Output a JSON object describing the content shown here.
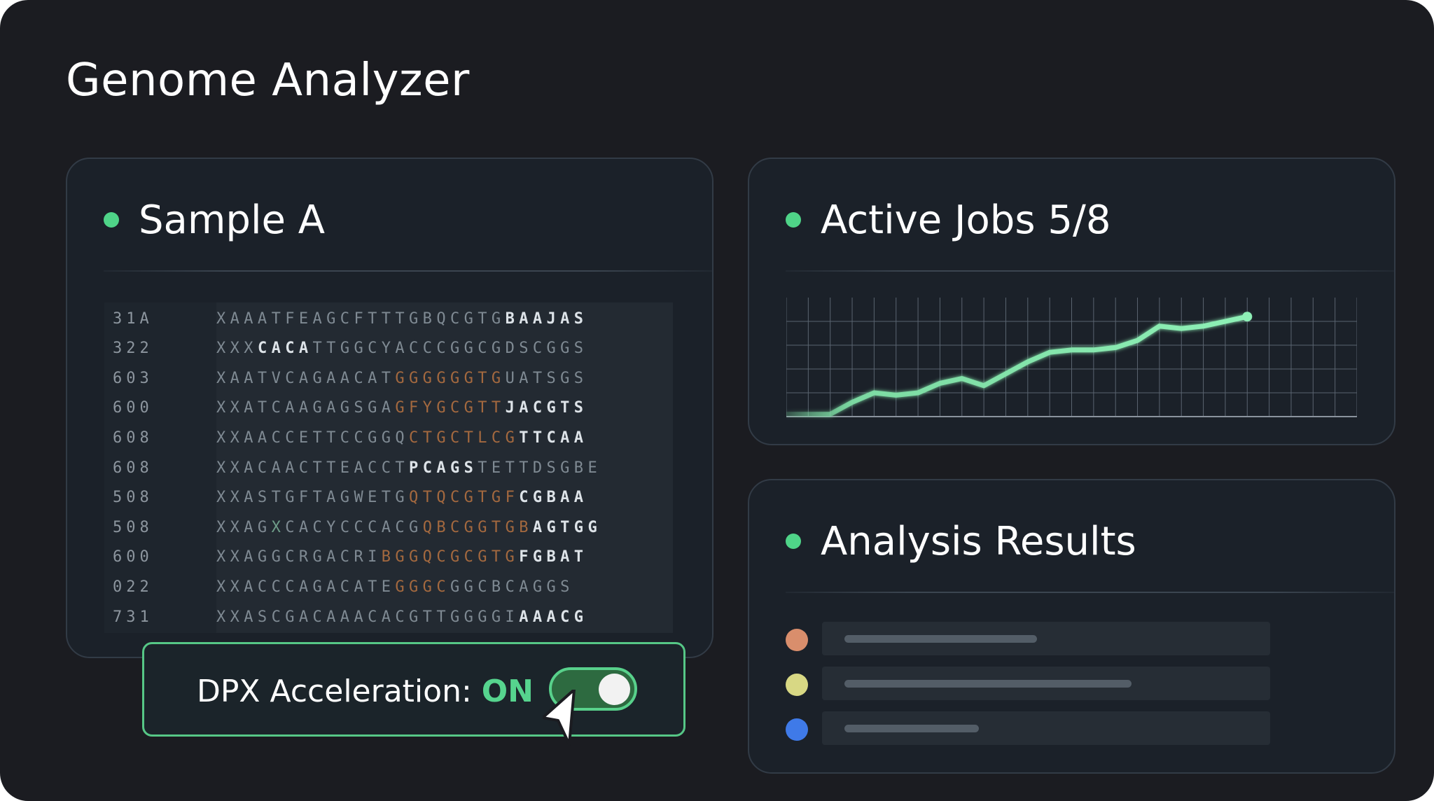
{
  "app": {
    "title": "Genome Analyzer"
  },
  "sample_panel": {
    "title": "Sample A",
    "rows": [
      {
        "num": "31A",
        "bases": [
          [
            "n",
            "XAAATF"
          ],
          [
            "n",
            "EAGCFTTTGBQCGTG"
          ],
          [
            "w",
            "BAAJAS"
          ]
        ]
      },
      {
        "num": "322",
        "bases": [
          [
            "n",
            "XXX"
          ],
          [
            "w",
            "CACA"
          ],
          [
            "n",
            "TTGGCYACCCGGCGDSCGGS"
          ]
        ]
      },
      {
        "num": "603",
        "bases": [
          [
            "n",
            "XAATVCAGAACAT"
          ],
          [
            "h",
            "GGGGGGTG"
          ],
          [
            "n",
            "UATSGS"
          ]
        ]
      },
      {
        "num": "600",
        "bases": [
          [
            "n",
            "XXATCAAGAGSGA"
          ],
          [
            "h",
            "GFYGCGTT"
          ],
          [
            "w",
            "JACGTS"
          ]
        ]
      },
      {
        "num": "608",
        "bases": [
          [
            "n",
            "XXAACCETTCCGGQ"
          ],
          [
            "h",
            "CTGCTLCG"
          ],
          [
            "w",
            "TTCAA"
          ]
        ]
      },
      {
        "num": "608",
        "bases": [
          [
            "n",
            "XXACAACTTEACCT"
          ],
          [
            "w",
            "PCAGS"
          ],
          [
            "n",
            "TETTDSGBE"
          ]
        ]
      },
      {
        "num": "508",
        "bases": [
          [
            "n",
            "XXASTGFTAGWETG"
          ],
          [
            "h",
            "QTQCGTGF"
          ],
          [
            "w",
            "CGBAA"
          ]
        ]
      },
      {
        "num": "508",
        "bases": [
          [
            "n",
            "XXAG"
          ],
          [
            "g",
            "X"
          ],
          [
            "n",
            "CACYCCCACG"
          ],
          [
            "h",
            "QBCGGTGB"
          ],
          [
            "w",
            "AGTGG"
          ]
        ]
      },
      {
        "num": "600",
        "bases": [
          [
            "n",
            "XXAGGCRGACRI"
          ],
          [
            "h",
            "BGGQCGCGTG"
          ],
          [
            "w",
            "FGBAT"
          ]
        ]
      },
      {
        "num": "022",
        "bases": [
          [
            "n",
            "XXACCCAGACATE"
          ],
          [
            "h",
            "GGGC"
          ],
          [
            "n",
            "GGCBCAGGS"
          ]
        ]
      },
      {
        "num": "731",
        "bases": [
          [
            "n",
            "XXASCGACAAACACGTTGGGGI"
          ],
          [
            "w",
            "AAACG"
          ]
        ]
      }
    ]
  },
  "toggle": {
    "label": "DPX Acceleration: ",
    "state": "ON",
    "enabled": true
  },
  "jobs_panel": {
    "title": "Active Jobs 5/8"
  },
  "chart_data": {
    "type": "line",
    "title": "",
    "xlabel": "",
    "ylabel": "",
    "grid": true,
    "x": [
      0,
      1,
      2,
      3,
      4,
      5,
      6,
      7,
      8,
      9,
      10,
      11,
      12,
      13,
      14,
      15,
      16,
      17,
      18,
      19,
      20,
      21
    ],
    "y": [
      0.1,
      0.1,
      0.1,
      0.6,
      1.0,
      0.9,
      1.0,
      1.4,
      1.6,
      1.3,
      1.8,
      2.3,
      2.7,
      2.8,
      2.8,
      2.9,
      3.2,
      3.8,
      3.7,
      3.8,
      4.0,
      4.2
    ],
    "xlim": [
      0,
      26
    ],
    "ylim": [
      0,
      5
    ],
    "series_color": "#7fe0a6"
  },
  "results_panel": {
    "title": "Analysis Results",
    "items": [
      {
        "color": "#d98e6c",
        "fill": 0.43
      },
      {
        "color": "#d8d884",
        "fill": 0.64
      },
      {
        "color": "#3f7ae8",
        "fill": 0.3
      }
    ]
  }
}
